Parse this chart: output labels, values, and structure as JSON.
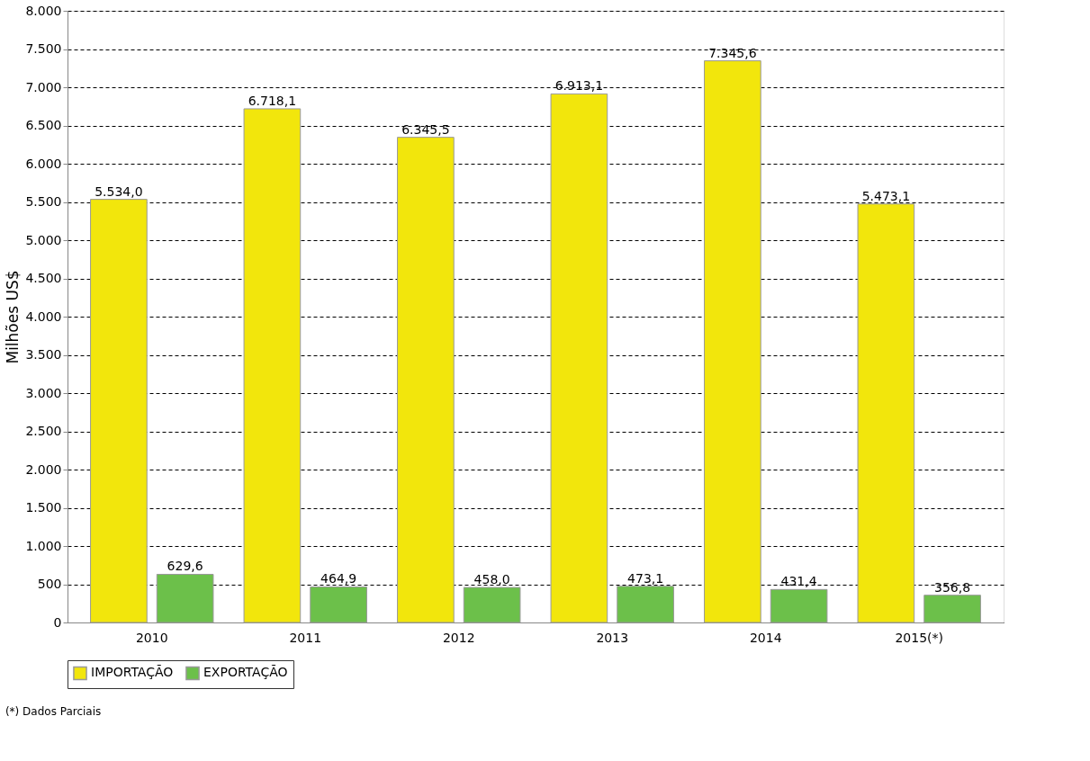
{
  "chart_data": {
    "type": "bar",
    "ylabel": "Milhões US$",
    "categories": [
      "2010",
      "2011",
      "2012",
      "2013",
      "2014",
      "2015(*)"
    ],
    "series": [
      {
        "name": "IMPORTAÇÃO",
        "color": "#f2e60c",
        "values": [
          5534.0,
          6718.1,
          6345.5,
          6913.1,
          7345.6,
          5473.1
        ],
        "value_labels": [
          "5.534,0",
          "6.718,1",
          "6.345,5",
          "6.913,1",
          "7.345,6",
          "5.473,1"
        ]
      },
      {
        "name": "EXPORTAÇÃO",
        "color": "#6cc04a",
        "values": [
          629.6,
          464.9,
          458.0,
          473.1,
          431.4,
          356.8
        ],
        "value_labels": [
          "629,6",
          "464,9",
          "458,0",
          "473,1",
          "431,4",
          "356,8"
        ]
      }
    ],
    "ylim": [
      0,
      8000
    ],
    "yticks": [
      {
        "value": 0,
        "label": "0"
      },
      {
        "value": 500,
        "label": "500"
      },
      {
        "value": 1000,
        "label": "1.000"
      },
      {
        "value": 1500,
        "label": "1.500"
      },
      {
        "value": 2000,
        "label": "2.000"
      },
      {
        "value": 2500,
        "label": "2.500"
      },
      {
        "value": 3000,
        "label": "3.000"
      },
      {
        "value": 3500,
        "label": "3.500"
      },
      {
        "value": 4000,
        "label": "4.000"
      },
      {
        "value": 4500,
        "label": "4.500"
      },
      {
        "value": 5000,
        "label": "5.000"
      },
      {
        "value": 5500,
        "label": "5.500"
      },
      {
        "value": 6000,
        "label": "6.000"
      },
      {
        "value": 6500,
        "label": "6.500"
      },
      {
        "value": 7000,
        "label": "7.000"
      },
      {
        "value": 7500,
        "label": "7.500"
      },
      {
        "value": 8000,
        "label": "8.000"
      }
    ],
    "grid": "y",
    "legend": "bottom",
    "annotations": [
      "(*) Dados Parciais"
    ]
  }
}
